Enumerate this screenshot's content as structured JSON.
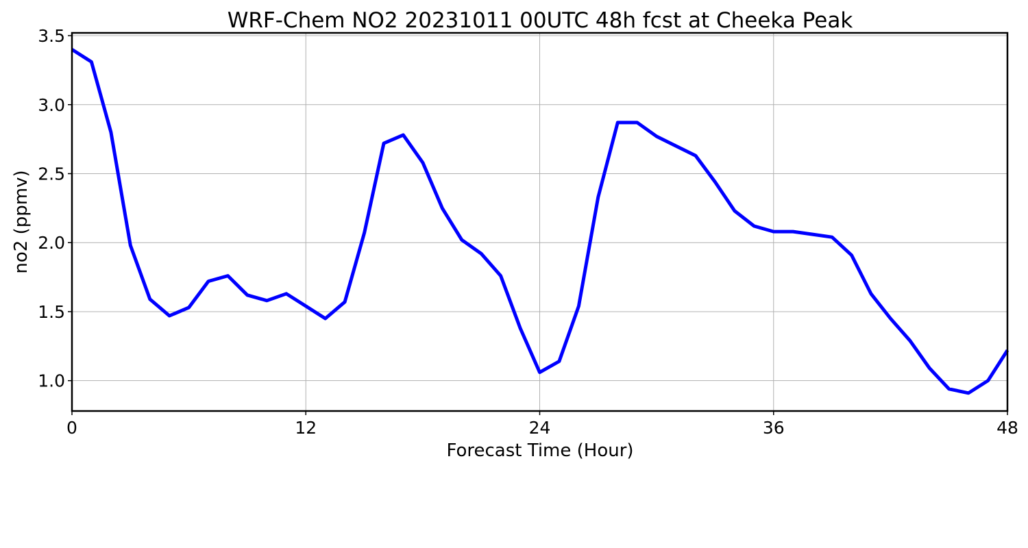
{
  "chart_data": {
    "type": "line",
    "title": "WRF-Chem NO2  20231011 00UTC 48h fcst at Cheeka Peak",
    "xlabel": "Forecast Time (Hour)",
    "ylabel": "no2  (ppmv)",
    "xlim": [
      0,
      48
    ],
    "ylim": [
      0.78,
      3.52
    ],
    "xticks": [
      0,
      12,
      24,
      36,
      48
    ],
    "xtick_labels": [
      "0",
      "12",
      "24",
      "36",
      "48"
    ],
    "yticks": [
      1.0,
      1.5,
      2.0,
      2.5,
      3.0,
      3.5
    ],
    "ytick_labels": [
      "1.0",
      "1.5",
      "2.0",
      "2.5",
      "3.0",
      "3.5"
    ],
    "grid": true,
    "line_color": "#0000ff",
    "series": [
      {
        "x": [
          0,
          1,
          2,
          3,
          4,
          5,
          6,
          7,
          8,
          9,
          10,
          11,
          12,
          13,
          14,
          15,
          16,
          17,
          18,
          19,
          20,
          21,
          22,
          23,
          24,
          25,
          26,
          27,
          28,
          29,
          30,
          31,
          32,
          33,
          34,
          35,
          36,
          37,
          38,
          39,
          40,
          41,
          42,
          43,
          44,
          45,
          46,
          47,
          48
        ],
        "values": [
          3.4,
          3.31,
          2.8,
          1.98,
          1.59,
          1.47,
          1.53,
          1.72,
          1.76,
          1.62,
          1.58,
          1.63,
          1.54,
          1.45,
          1.57,
          2.07,
          2.72,
          2.78,
          2.58,
          2.25,
          2.02,
          1.92,
          1.76,
          1.38,
          1.06,
          1.14,
          1.54,
          2.33,
          2.87,
          2.87,
          2.77,
          2.7,
          2.63,
          2.44,
          2.23,
          2.12,
          2.08,
          2.08,
          2.06,
          2.04,
          1.91,
          1.63,
          1.45,
          1.29,
          1.09,
          0.94,
          0.91,
          1.0,
          1.22
        ]
      }
    ]
  }
}
